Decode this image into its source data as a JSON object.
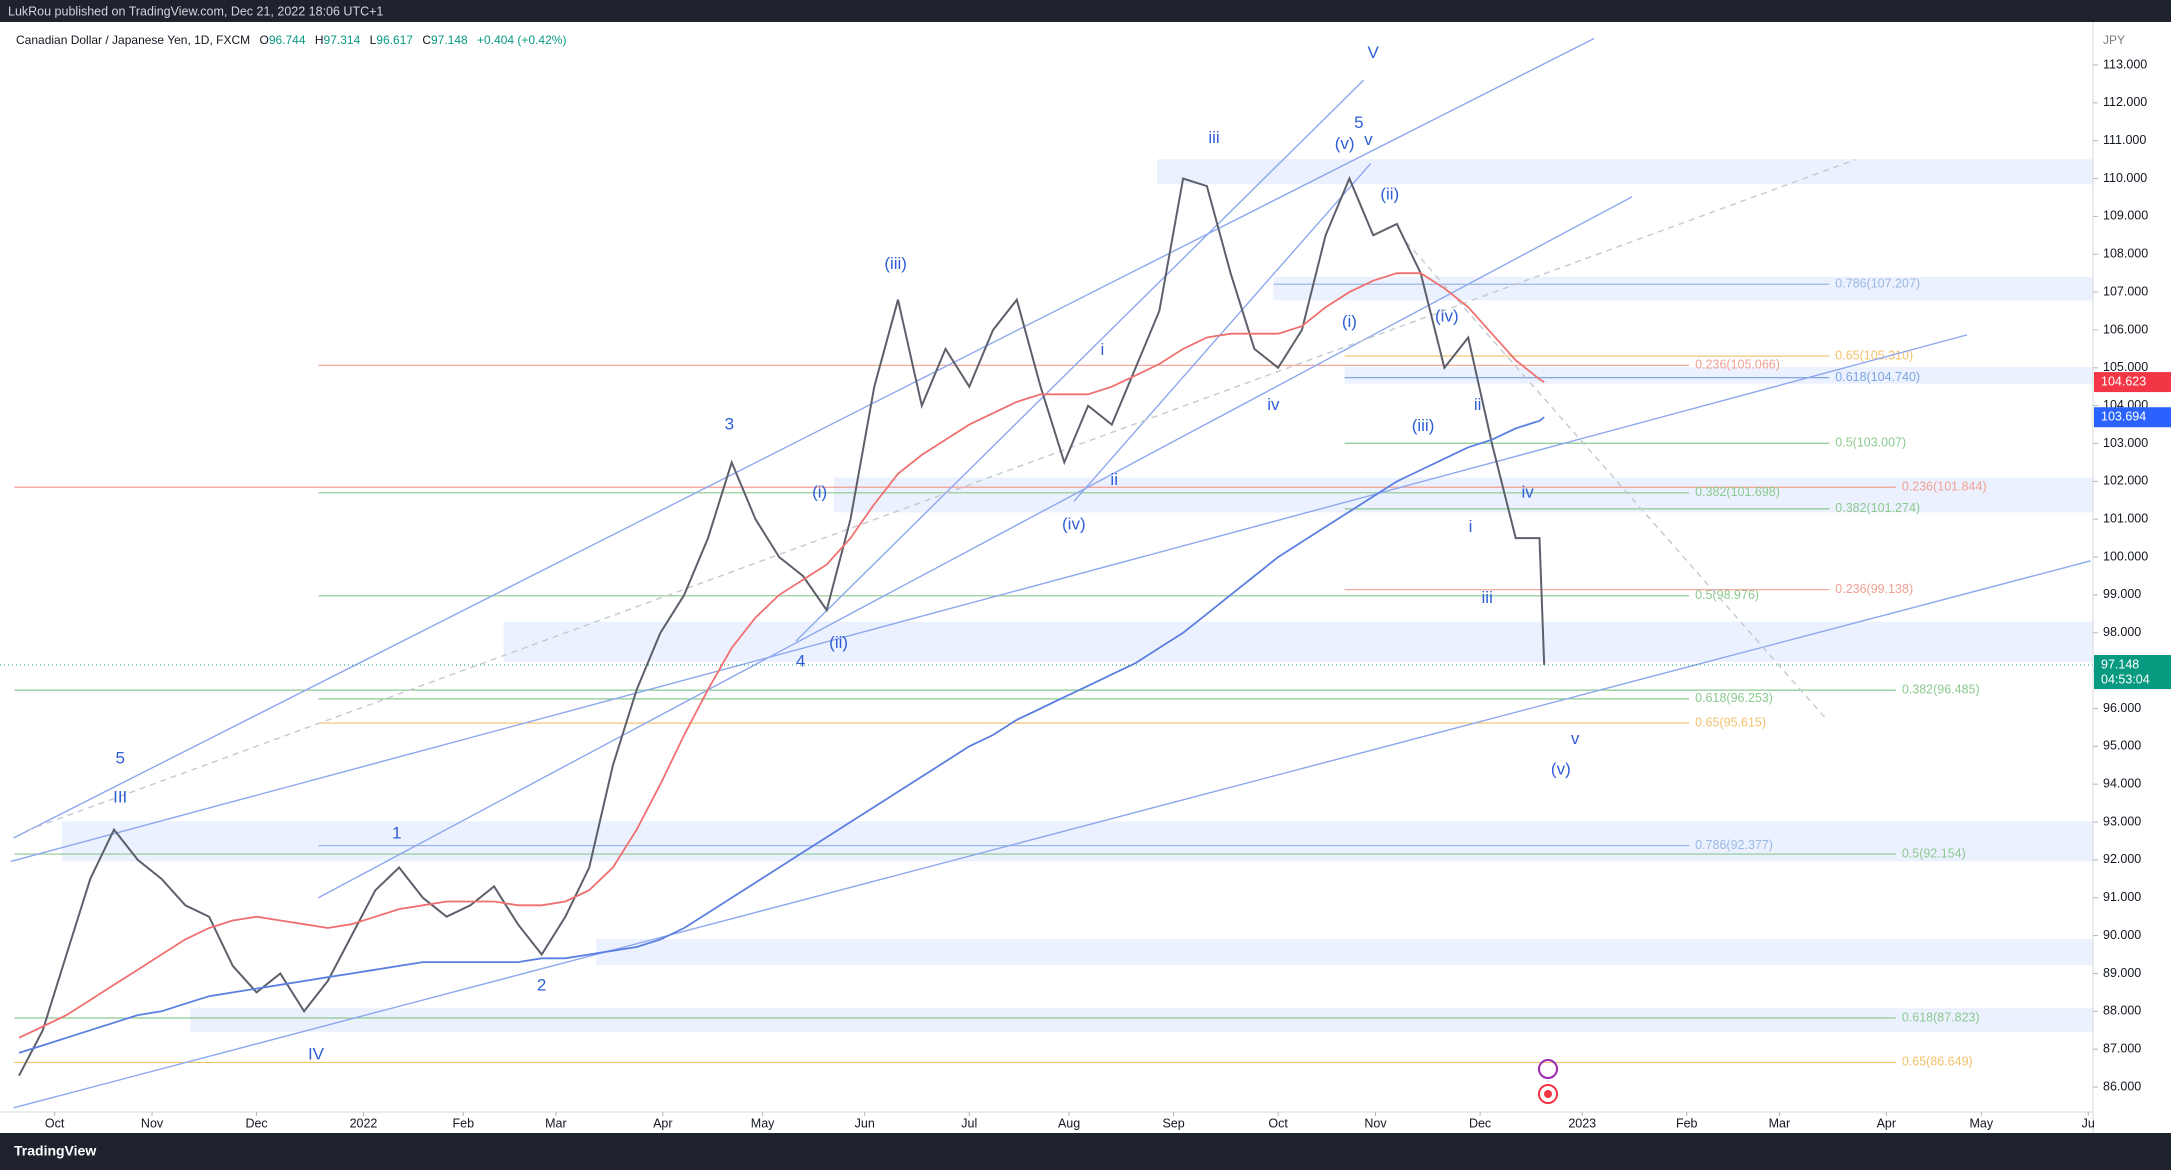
{
  "header": {
    "publisher": "LukRou published on TradingView.com, Dec 21, 2022 18:06 UTC+1",
    "symbol": "Canadian Dollar / Japanese Yen, 1D, FXCM",
    "legend": [
      {
        "key": "O",
        "value": "96.744"
      },
      {
        "key": "H",
        "value": "97.314"
      },
      {
        "key": "L",
        "value": "96.617"
      },
      {
        "key": "C",
        "value": "97.148"
      }
    ],
    "change": "+0.404 (+0.42%)"
  },
  "footer": "TradingView",
  "chart_data": {
    "type": "line",
    "currency": "JPY",
    "x": [
      -1.5,
      -0.5,
      0.5,
      1.5,
      2.5,
      3.5,
      4.5,
      5.5,
      6.5,
      7.5,
      8.5,
      9.5,
      10.5,
      11.5,
      12.5,
      13.5,
      14.5,
      15.5,
      16.5,
      17.5,
      18.5,
      19.5,
      20.5,
      21.5,
      22.5,
      23.5,
      24.5,
      25.5,
      26.5,
      27.5,
      28.5,
      29.5,
      30.5,
      31.5,
      32.5,
      33.5,
      34.5,
      35.5,
      36.5,
      37.5,
      38.5,
      39.5,
      40.5,
      41.5,
      42.5,
      43.5,
      44.5,
      45.5,
      46.5,
      47.5,
      48.5,
      49.5,
      50.5,
      51.5,
      52.5,
      53.5,
      54.5,
      55.5,
      56.5,
      57.5,
      58.5,
      59.5,
      60.5,
      61.5,
      62.5,
      62.7
    ],
    "series": [
      {
        "color": "#5d606b",
        "values": [
          86.3,
          87.5,
          89.5,
          91.5,
          92.8,
          92.0,
          91.5,
          90.8,
          90.5,
          89.2,
          88.5,
          89.0,
          88.0,
          88.8,
          90.0,
          91.2,
          91.8,
          91.0,
          90.5,
          90.8,
          91.3,
          90.3,
          89.5,
          90.5,
          91.8,
          94.5,
          96.5,
          98.0,
          99.0,
          100.5,
          102.5,
          101.0,
          100.0,
          99.5,
          98.6,
          101.0,
          104.5,
          106.8,
          104.0,
          105.5,
          104.5,
          106.0,
          106.8,
          104.5,
          102.5,
          104.0,
          103.5,
          105.0,
          106.5,
          110.0,
          109.8,
          107.5,
          105.5,
          105.0,
          106.0,
          108.5,
          110.0,
          108.5,
          108.8,
          107.5,
          105.0,
          105.8,
          103.0,
          100.5,
          100.5,
          97.148
        ]
      },
      {
        "color": "#f07070",
        "values": [
          87.3,
          87.6,
          87.9,
          88.3,
          88.7,
          89.1,
          89.5,
          89.9,
          90.2,
          90.4,
          90.5,
          90.4,
          90.3,
          90.2,
          90.3,
          90.5,
          90.7,
          90.8,
          90.9,
          90.9,
          90.9,
          90.8,
          90.8,
          90.9,
          91.2,
          91.8,
          92.8,
          94.0,
          95.3,
          96.5,
          97.6,
          98.4,
          99.0,
          99.4,
          99.8,
          100.5,
          101.4,
          102.2,
          102.7,
          103.1,
          103.5,
          103.8,
          104.1,
          104.3,
          104.3,
          104.3,
          104.5,
          104.8,
          105.1,
          105.5,
          105.8,
          105.9,
          105.9,
          105.9,
          106.1,
          106.6,
          107.0,
          107.3,
          107.5,
          107.5,
          107.1,
          106.6,
          105.9,
          105.2,
          104.7,
          104.623
        ]
      },
      {
        "color": "#5b7fe0",
        "values": [
          86.9,
          87.1,
          87.3,
          87.5,
          87.7,
          87.9,
          88.0,
          88.2,
          88.4,
          88.5,
          88.6,
          88.7,
          88.8,
          88.9,
          89.0,
          89.1,
          89.2,
          89.3,
          89.3,
          89.3,
          89.3,
          89.3,
          89.4,
          89.4,
          89.5,
          89.6,
          89.7,
          89.9,
          90.2,
          90.6,
          91.0,
          91.4,
          91.8,
          92.2,
          92.6,
          93.0,
          93.4,
          93.8,
          94.2,
          94.6,
          95.0,
          95.3,
          95.7,
          96.0,
          96.3,
          96.6,
          96.9,
          97.2,
          97.6,
          98.0,
          98.5,
          99.0,
          99.5,
          100.0,
          100.4,
          100.8,
          101.2,
          101.6,
          102.0,
          102.3,
          102.6,
          102.9,
          103.1,
          103.4,
          103.6,
          103.694
        ]
      }
    ],
    "xlim": [
      -2.3,
      85.8
    ],
    "xticks": [
      {
        "value": 0,
        "label": "Oct"
      },
      {
        "value": 4.1,
        "label": "Nov"
      },
      {
        "value": 8.5,
        "label": "Dec"
      },
      {
        "value": 13.0,
        "label": "2022"
      },
      {
        "value": 17.2,
        "label": "Feb"
      },
      {
        "value": 21.1,
        "label": "Mar"
      },
      {
        "value": 25.6,
        "label": "Apr"
      },
      {
        "value": 29.8,
        "label": "May"
      },
      {
        "value": 34.1,
        "label": "Jun"
      },
      {
        "value": 38.5,
        "label": "Jul"
      },
      {
        "value": 42.7,
        "label": "Aug"
      },
      {
        "value": 47.1,
        "label": "Sep"
      },
      {
        "value": 51.5,
        "label": "Oct"
      },
      {
        "value": 55.6,
        "label": "Nov"
      },
      {
        "value": 60.0,
        "label": "Dec"
      },
      {
        "value": 64.3,
        "label": "2023"
      },
      {
        "value": 68.7,
        "label": "Feb"
      },
      {
        "value": 72.6,
        "label": "Mar"
      },
      {
        "value": 77.1,
        "label": "Apr"
      },
      {
        "value": 81.1,
        "label": "May"
      },
      {
        "value": 85.6,
        "label": "Ju"
      }
    ],
    "ylim": [
      85.34,
      113.66
    ],
    "yticks": [
      {
        "value": 86,
        "label": "86.000"
      },
      {
        "value": 87,
        "label": "87.000"
      },
      {
        "value": 88,
        "label": "88.000"
      },
      {
        "value": 89,
        "label": "89.000"
      },
      {
        "value": 90,
        "label": "90.000"
      },
      {
        "value": 91,
        "label": "91.000"
      },
      {
        "value": 92,
        "label": "92.000"
      },
      {
        "value": 93,
        "label": "93.000"
      },
      {
        "value": 94,
        "label": "94.000"
      },
      {
        "value": 95,
        "label": "95.000"
      },
      {
        "value": 96,
        "label": "96.000"
      },
      {
        "value": 97,
        "label": "97.000"
      },
      {
        "value": 98,
        "label": "98.000"
      },
      {
        "value": 99,
        "label": "99.000"
      },
      {
        "value": 100,
        "label": "100.000"
      },
      {
        "value": 101,
        "label": "101.000"
      },
      {
        "value": 102,
        "label": "102.000"
      },
      {
        "value": 103,
        "label": "103.000"
      },
      {
        "value": 104,
        "label": "104.000"
      },
      {
        "value": 105,
        "label": "105.000"
      },
      {
        "value": 106,
        "label": "106.000"
      },
      {
        "value": 107,
        "label": "107.000"
      },
      {
        "value": 108,
        "label": "108.000"
      },
      {
        "value": 109,
        "label": "109.000"
      },
      {
        "value": 110,
        "label": "110.000"
      },
      {
        "value": 111,
        "label": "111.000"
      },
      {
        "value": 112,
        "label": "112.000"
      },
      {
        "value": 113,
        "label": "113.000"
      }
    ],
    "price_labels": [
      {
        "value": 104.623,
        "color": "#f23645"
      },
      {
        "value": 103.694,
        "color": "#2962ff"
      },
      {
        "value": 97.148,
        "color": "#089981",
        "countdown": "04:53:04"
      }
    ],
    "zones": [
      {
        "from": 46.4,
        "top": 110.51,
        "bottom": 109.85
      },
      {
        "from": 51.3,
        "top": 107.4,
        "bottom": 106.78
      },
      {
        "from": 54.3,
        "top": 105.02,
        "bottom": 104.58
      },
      {
        "from": 32.8,
        "top": 102.1,
        "bottom": 101.18
      },
      {
        "from": 18.9,
        "top": 98.29,
        "bottom": 97.23
      },
      {
        "from": 0.3,
        "top": 93.02,
        "bottom": 91.96
      },
      {
        "from": 22.8,
        "top": 89.91,
        "bottom": 89.22
      },
      {
        "from": 5.7,
        "top": 88.08,
        "bottom": 87.46
      }
    ],
    "trendlines": [
      {
        "points": [
          -1.73,
          92.58,
          64.8,
          113.7
        ]
      },
      {
        "points": [
          -1.85,
          91.96,
          80.5,
          105.87
        ]
      },
      {
        "points": [
          -1.73,
          85.45,
          85.7,
          99.9
        ]
      },
      {
        "points": [
          11.1,
          91.0,
          66.4,
          109.52
        ]
      },
      {
        "points": [
          31.2,
          97.78,
          55.1,
          112.6
        ]
      },
      {
        "points": [
          42.9,
          101.47,
          55.4,
          110.4
        ]
      },
      {
        "points": [
          -1.2,
          92.77,
          75.8,
          110.5
        ],
        "dashed": true
      },
      {
        "points": [
          56.9,
          108.32,
          74.5,
          95.77
        ],
        "dashed": true
      }
    ],
    "levels": [
      {
        "label": "0.786(107.207)",
        "value": 107.207,
        "from": 51.3,
        "to": 74.7,
        "color": "#9bb8e3"
      },
      {
        "label": "0.236(105.066)",
        "value": 105.066,
        "from": 11.1,
        "to": 68.8,
        "color": "#f2a093"
      },
      {
        "label": "0.65(105.310)",
        "value": 105.31,
        "from": 54.3,
        "to": 74.7,
        "color": "#f2c16b"
      },
      {
        "label": "0.618(104.740)",
        "value": 104.74,
        "from": 54.3,
        "to": 74.7,
        "color": "#7fa6e0"
      },
      {
        "label": "0.5(103.007)",
        "value": 103.007,
        "from": 54.3,
        "to": 74.7,
        "color": "#8cc98f"
      },
      {
        "label": "0.236(101.844)",
        "value": 101.844,
        "from": -1.7,
        "to": 77.5,
        "color": "#f2a093"
      },
      {
        "label": "0.382(101.698)",
        "value": 101.698,
        "from": 11.1,
        "to": 68.8,
        "color": "#8cc98f"
      },
      {
        "label": "0.382(101.274)",
        "value": 101.274,
        "from": 54.3,
        "to": 74.7,
        "color": "#8cc98f"
      },
      {
        "label": "0.5(98.976)",
        "value": 98.976,
        "from": 11.1,
        "to": 68.8,
        "color": "#8cc98f"
      },
      {
        "label": "0.236(99.138)",
        "value": 99.138,
        "from": 54.3,
        "to": 74.7,
        "color": "#f2a093"
      },
      {
        "label": "0.382(96.485)",
        "value": 96.485,
        "from": -1.7,
        "to": 77.5,
        "color": "#8cc98f"
      },
      {
        "label": "0.618(96.253)",
        "value": 96.253,
        "from": 11.1,
        "to": 68.8,
        "color": "#8cc98f"
      },
      {
        "label": "0.65(95.615)",
        "value": 95.615,
        "from": 11.1,
        "to": 68.8,
        "color": "#f2c16b"
      },
      {
        "label": "0.786(92.377)",
        "value": 92.377,
        "from": 11.1,
        "to": 68.8,
        "color": "#9bb8e3"
      },
      {
        "label": "0.5(92.154)",
        "value": 92.154,
        "from": -1.7,
        "to": 77.5,
        "color": "#8cc98f"
      },
      {
        "label": "0.618(87.823)",
        "value": 87.823,
        "from": -1.7,
        "to": 77.5,
        "color": "#8cc98f"
      },
      {
        "label": "0.65(86.649)",
        "value": 86.649,
        "from": -1.7,
        "to": 77.5,
        "color": "#f2c16b"
      }
    ],
    "annotations": [
      {
        "text": "V",
        "x": 55.5,
        "y": 113.3
      },
      {
        "text": "5",
        "x": 54.9,
        "y": 111.46
      },
      {
        "text": "v",
        "x": 55.3,
        "y": 111.0
      },
      {
        "text": "(v)",
        "x": 54.3,
        "y": 110.9
      },
      {
        "text": "iii",
        "x": 48.8,
        "y": 111.06
      },
      {
        "text": "(ii)",
        "x": 56.2,
        "y": 109.56
      },
      {
        "text": "(iii)",
        "x": 35.4,
        "y": 107.73
      },
      {
        "text": "i",
        "x": 44.1,
        "y": 105.46
      },
      {
        "text": "(i)",
        "x": 54.5,
        "y": 106.2
      },
      {
        "text": "(iv)",
        "x": 58.6,
        "y": 106.34
      },
      {
        "text": "iv",
        "x": 51.3,
        "y": 104.0
      },
      {
        "text": "ii",
        "x": 59.9,
        "y": 104.0
      },
      {
        "text": "(iii)",
        "x": 57.6,
        "y": 103.45
      },
      {
        "text": "ii",
        "x": 44.6,
        "y": 102.02
      },
      {
        "text": "3",
        "x": 28.4,
        "y": 103.49
      },
      {
        "text": "(i)",
        "x": 32.2,
        "y": 101.69
      },
      {
        "text": "(iv)",
        "x": 42.9,
        "y": 100.85
      },
      {
        "text": "iv",
        "x": 62.0,
        "y": 101.69
      },
      {
        "text": "i",
        "x": 59.6,
        "y": 100.78
      },
      {
        "text": "iii",
        "x": 60.3,
        "y": 98.91
      },
      {
        "text": "(ii)",
        "x": 33.0,
        "y": 97.71
      },
      {
        "text": "4",
        "x": 31.4,
        "y": 97.23
      },
      {
        "text": "v",
        "x": 64.0,
        "y": 95.18
      },
      {
        "text": "(v)",
        "x": 63.4,
        "y": 94.38
      },
      {
        "text": "5",
        "x": 2.76,
        "y": 94.67
      },
      {
        "text": "III",
        "x": 2.76,
        "y": 93.64
      },
      {
        "text": "1",
        "x": 14.4,
        "y": 92.69
      },
      {
        "text": "2",
        "x": 20.5,
        "y": 88.67
      },
      {
        "text": "IV",
        "x": 11.0,
        "y": 86.84
      }
    ]
  }
}
